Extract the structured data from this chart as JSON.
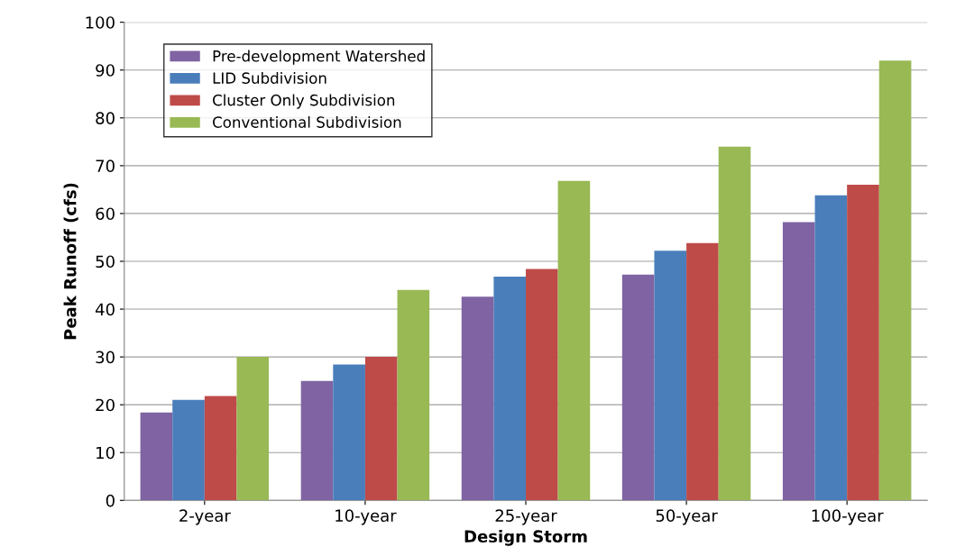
{
  "chart_data": {
    "type": "bar",
    "xlabel": "Design Storm",
    "ylabel": "Peak Runoff (cfs)",
    "categories": [
      "2-year",
      "10-year",
      "25-year",
      "50-year",
      "100-year"
    ],
    "series": [
      {
        "name": "Pre-development Watershed",
        "color": "#7f63a2",
        "values": [
          18.4,
          25,
          42.6,
          47.2,
          58.2
        ]
      },
      {
        "name": "LID Subdivision",
        "color": "#4a7ebb",
        "values": [
          21,
          28.4,
          46.8,
          52.2,
          63.8
        ]
      },
      {
        "name": "Cluster Only Subdivision",
        "color": "#be4b48",
        "values": [
          21.8,
          30,
          48.4,
          53.8,
          66
        ]
      },
      {
        "name": "Conventional Subdivision",
        "color": "#98b954",
        "values": [
          30,
          44,
          66.8,
          74,
          92
        ]
      }
    ],
    "ylim": [
      0,
      100
    ],
    "yticks": [
      0,
      10,
      20,
      30,
      40,
      50,
      60,
      70,
      80,
      90,
      100
    ],
    "grid": "y",
    "legend": "top left"
  }
}
